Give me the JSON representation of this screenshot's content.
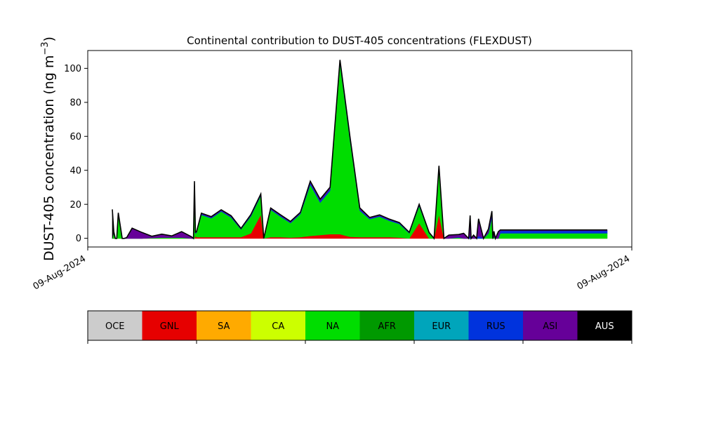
{
  "chart_data": {
    "type": "area",
    "title": "Continental contribution to DUST-405 concentrations (FLEXDUST)",
    "ylabel": "DUST-405 concentration (ng m",
    "ylabel_sup": "−3",
    "ylabel_close": ")",
    "ylim": [
      -5,
      110
    ],
    "yticks": [
      "0",
      "20",
      "40",
      "60",
      "80",
      "100"
    ],
    "xtick_labels": [
      "09-Aug-2024",
      "09-Aug-2024"
    ],
    "grid": false,
    "total_line_color": "#000000",
    "categories": [
      "OCE",
      "GNL",
      "SA",
      "CA",
      "NA",
      "AFR",
      "EUR",
      "RUS",
      "ASI",
      "AUS"
    ],
    "colors": [
      "#cccccc",
      "#e60000",
      "#ffaa00",
      "#ccff00",
      "#00dd00",
      "#009900",
      "#00a5bb",
      "#0033dd",
      "#660099",
      "#000000"
    ],
    "text_colors": [
      "#000000",
      "#000000",
      "#000000",
      "#000000",
      "#000000",
      "#000000",
      "#000000",
      "#000000",
      "#000000",
      "#ffffff"
    ],
    "series": [
      {
        "x": [
          0.0,
          0.15,
          0.3,
          0.45,
          0.6,
          1.0,
          1.2,
          1.45,
          2.0,
          3.0,
          4.0,
          5.0,
          6.0,
          7.0,
          8.0,
          8.2,
          8.3,
          8.4,
          8.5,
          9.0,
          10.0,
          11.0,
          12.0,
          13.0,
          14.0,
          15.0,
          15.3,
          16.0,
          17.0,
          18.0,
          19.0,
          20.0,
          21.0,
          22.0,
          23.0,
          24.0,
          25.0,
          26.0,
          27.0,
          28.0,
          29.0,
          30.0,
          31.0,
          32.0,
          32.5,
          33.0,
          33.5,
          34.0,
          35.0,
          35.5,
          36.0,
          36.15,
          36.25,
          36.5,
          36.65,
          36.8,
          37.0,
          37.5,
          38.0,
          38.35,
          38.45,
          38.55,
          38.7,
          39.0,
          39.2,
          50.0
        ],
        "values": {
          "GNL": [
            0,
            0,
            0,
            0,
            0,
            0,
            0,
            0,
            0,
            0,
            0,
            0,
            0,
            0,
            0,
            0,
            0,
            1.5,
            0.8,
            0.8,
            0.8,
            0.8,
            0.8,
            0.8,
            3.0,
            14.0,
            0,
            0.8,
            0.8,
            0.5,
            0.8,
            1.5,
            2.0,
            2.5,
            2.5,
            1.0,
            0.8,
            0.8,
            0.8,
            0.8,
            0.5,
            0,
            9.0,
            0,
            0,
            14.0,
            0,
            0,
            0,
            0,
            0,
            0,
            0,
            0,
            0,
            0,
            0,
            0,
            0,
            0,
            0,
            0,
            0,
            0,
            0,
            0
          ],
          "NA": [
            0,
            3.5,
            0,
            0,
            14.0,
            0,
            0,
            0,
            0,
            0,
            0.3,
            0.5,
            0.5,
            0.5,
            0,
            0,
            32.0,
            1.5,
            2.5,
            13.0,
            11.0,
            15.0,
            11.5,
            4.5,
            10.0,
            11.0,
            0,
            16.0,
            12.0,
            8.5,
            13.5,
            30.0,
            19.0,
            25.5,
            100.0,
            57.0,
            15.5,
            10.5,
            12.0,
            9.5,
            8.0,
            3.0,
            10.0,
            3.0,
            0,
            27.0,
            0,
            0,
            0.5,
            0,
            0,
            0,
            0,
            0,
            0,
            0,
            0,
            0,
            3.0,
            12.0,
            0,
            1.0,
            0,
            0,
            3.0,
            3.0
          ],
          "RUS": [
            0,
            0,
            0,
            0,
            0,
            0,
            0,
            0,
            0,
            0,
            0,
            0,
            0,
            0,
            0,
            0,
            0,
            0.2,
            0.3,
            0.5,
            0.5,
            0.5,
            0.5,
            0.3,
            0.5,
            0.5,
            0,
            0.5,
            0.5,
            0.5,
            0.5,
            1.0,
            1.0,
            1.0,
            1.0,
            1.0,
            0.8,
            0.5,
            0.5,
            0.5,
            0.5,
            0.3,
            0.5,
            0.3,
            0,
            1.0,
            0,
            0,
            0.3,
            0,
            0,
            1.5,
            0,
            0,
            0,
            0,
            1.5,
            0,
            0.5,
            2.0,
            0,
            0.2,
            0,
            0,
            1.5,
            1.5
          ],
          "ASI": [
            0,
            0.5,
            0,
            0,
            1.0,
            0,
            0,
            0.5,
            6.0,
            3.5,
            1.0,
            2.0,
            1.0,
            3.5,
            1.0,
            0,
            1.5,
            0.5,
            0.3,
            0.5,
            0.5,
            0.5,
            0.5,
            0.3,
            0.5,
            0.5,
            0,
            0.5,
            0.5,
            0.5,
            0.5,
            1.0,
            1.0,
            1.0,
            1.0,
            1.0,
            0.8,
            0.5,
            0.5,
            0.5,
            0.3,
            0.3,
            0.5,
            0.3,
            0,
            0.5,
            0,
            2.0,
            1.5,
            3.0,
            0,
            12.0,
            0,
            2.0,
            1.0,
            0,
            10.0,
            0,
            2.0,
            2.0,
            0,
            3.0,
            0,
            4.0,
            0.5,
            0.5
          ],
          "AUS": [
            17.0,
            0,
            0,
            0,
            0,
            0,
            0,
            0,
            0,
            0,
            0,
            0,
            0,
            0,
            0,
            0,
            0,
            0,
            0,
            0,
            0,
            0,
            0,
            0,
            0,
            0,
            0,
            0,
            0,
            0,
            0,
            0,
            0,
            0,
            0,
            0,
            0,
            0,
            0,
            0,
            0,
            0,
            0,
            0,
            0,
            0,
            0,
            0,
            0,
            0,
            0,
            0,
            0,
            0,
            0,
            0,
            0,
            0,
            0,
            0,
            0,
            0,
            0,
            0,
            0,
            0
          ]
        }
      }
    ]
  }
}
